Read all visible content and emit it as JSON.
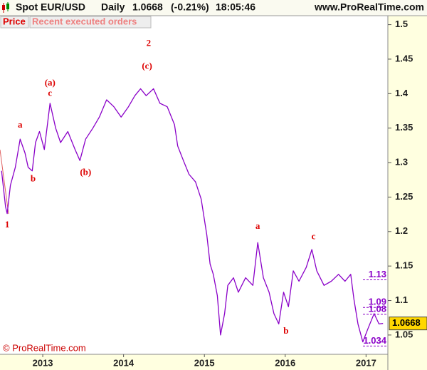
{
  "chart_data": {
    "type": "line",
    "instrument": "Spot EUR/USD",
    "period": "Daily",
    "last": 1.0668,
    "change_label": "(-0.21%)",
    "time": "18:05:46",
    "website": "www.ProRealTime.com",
    "tabs": [
      "Price",
      "Recent executed orders"
    ],
    "watermark": "© ProRealTime.com",
    "x": [
      2012.49,
      2012.54,
      2012.56,
      2012.6,
      2012.66,
      2012.72,
      2012.78,
      2012.82,
      2012.87,
      2012.91,
      2012.96,
      2013.02,
      2013.09,
      2013.16,
      2013.22,
      2013.31,
      2013.4,
      2013.46,
      2013.53,
      2013.62,
      2013.7,
      2013.79,
      2013.88,
      2013.97,
      2014.06,
      2014.14,
      2014.21,
      2014.28,
      2014.37,
      2014.45,
      2014.54,
      2014.63,
      2014.67,
      2014.74,
      2014.81,
      2014.89,
      2014.96,
      2015.03,
      2015.07,
      2015.11,
      2015.16,
      2015.2,
      2015.25,
      2015.29,
      2015.36,
      2015.42,
      2015.51,
      2015.6,
      2015.66,
      2015.73,
      2015.8,
      2015.86,
      2015.92,
      2015.98,
      2016.04,
      2016.1,
      2016.17,
      2016.26,
      2016.33,
      2016.39,
      2016.48,
      2016.57,
      2016.66,
      2016.74,
      2016.81,
      2016.85,
      2016.9,
      2016.96,
      2017.03,
      2017.1,
      2017.16,
      2017.21
    ],
    "series": [
      {
        "name": "EUR/USD",
        "color": "#8a00c8",
        "values": [
          1.288,
          1.236,
          1.226,
          1.267,
          1.293,
          1.334,
          1.314,
          1.293,
          1.288,
          1.329,
          1.345,
          1.319,
          1.386,
          1.35,
          1.329,
          1.345,
          1.319,
          1.303,
          1.334,
          1.35,
          1.366,
          1.391,
          1.381,
          1.366,
          1.381,
          1.397,
          1.407,
          1.397,
          1.407,
          1.386,
          1.381,
          1.355,
          1.324,
          1.303,
          1.283,
          1.272,
          1.247,
          1.195,
          1.153,
          1.138,
          1.107,
          1.05,
          1.081,
          1.122,
          1.133,
          1.112,
          1.133,
          1.122,
          1.184,
          1.133,
          1.112,
          1.081,
          1.066,
          1.112,
          1.091,
          1.143,
          1.128,
          1.148,
          1.174,
          1.143,
          1.122,
          1.128,
          1.138,
          1.128,
          1.138,
          1.102,
          1.066,
          1.04,
          1.061,
          1.081,
          1.066,
          1.0668
        ]
      }
    ],
    "xlim": [
      2012.471,
      2017.27
    ],
    "xticks": [
      2013,
      2014,
      2015,
      2016,
      2017
    ],
    "ylim": [
      1.022,
      1.513
    ],
    "yticks": [
      1.05,
      1.1,
      1.15,
      1.2,
      1.25,
      1.3,
      1.35,
      1.4,
      1.45,
      1.5
    ],
    "levels": [
      1.13,
      1.09,
      1.08,
      1.034
    ],
    "level_color": "#8a00c8",
    "annotations": [
      {
        "text": "1",
        "x": 2012.56,
        "y": 1.209
      },
      {
        "text": "a",
        "x": 2012.72,
        "y": 1.354
      },
      {
        "text": "b",
        "x": 2012.88,
        "y": 1.276
      },
      {
        "text": "(a)",
        "x": 2013.09,
        "y": 1.415
      },
      {
        "text": "c",
        "x": 2013.09,
        "y": 1.4
      },
      {
        "text": "(b)",
        "x": 2013.53,
        "y": 1.285
      },
      {
        "text": "2",
        "x": 2014.31,
        "y": 1.472
      },
      {
        "text": "(c)",
        "x": 2014.29,
        "y": 1.439
      },
      {
        "text": "a",
        "x": 2015.66,
        "y": 1.207
      },
      {
        "text": "b",
        "x": 2016.01,
        "y": 1.055
      },
      {
        "text": "c",
        "x": 2016.35,
        "y": 1.192
      }
    ],
    "annotation_color": "#dd0000"
  }
}
